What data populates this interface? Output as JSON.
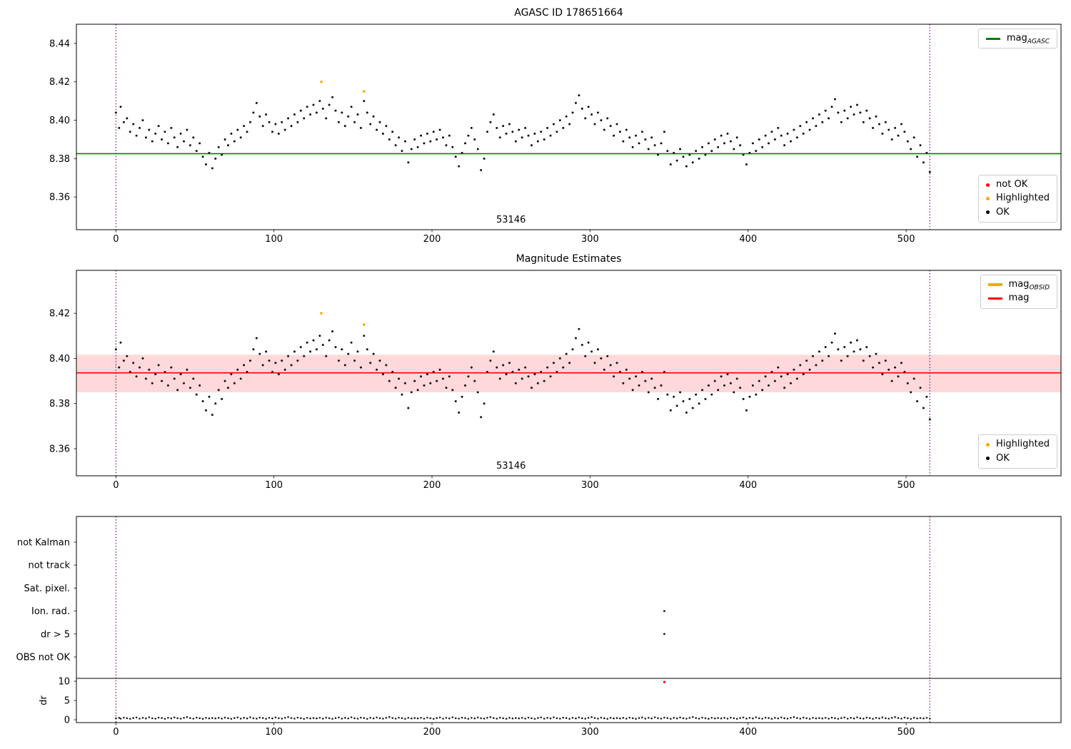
{
  "figure": {
    "background": "#ffffff"
  },
  "colors": {
    "scatter": "#111111",
    "highlight": "#ffa500",
    "not_ok": "#ff0000",
    "vline": "#800080",
    "green_line": "#008000",
    "red_line": "#ff0000",
    "band_fill": "rgba(255,0,0,0.15)",
    "spine": "#000000"
  },
  "chart_data": {
    "type": "scatter",
    "points_mag": [
      [
        0,
        8.404
      ],
      [
        2,
        8.396
      ],
      [
        3,
        8.407
      ],
      [
        5,
        8.399
      ],
      [
        7,
        8.401
      ],
      [
        9,
        8.394
      ],
      [
        11,
        8.398
      ],
      [
        13,
        8.392
      ],
      [
        15,
        8.396
      ],
      [
        17,
        8.4
      ],
      [
        19,
        8.391
      ],
      [
        21,
        8.395
      ],
      [
        23,
        8.389
      ],
      [
        25,
        8.393
      ],
      [
        27,
        8.397
      ],
      [
        29,
        8.39
      ],
      [
        31,
        8.394
      ],
      [
        33,
        8.388
      ],
      [
        35,
        8.396
      ],
      [
        37,
        8.391
      ],
      [
        39,
        8.386
      ],
      [
        41,
        8.393
      ],
      [
        43,
        8.389
      ],
      [
        45,
        8.395
      ],
      [
        47,
        8.387
      ],
      [
        49,
        8.391
      ],
      [
        51,
        8.384
      ],
      [
        53,
        8.388
      ],
      [
        55,
        8.381
      ],
      [
        57,
        8.377
      ],
      [
        59,
        8.383
      ],
      [
        61,
        8.375
      ],
      [
        63,
        8.38
      ],
      [
        65,
        8.386
      ],
      [
        67,
        8.382
      ],
      [
        69,
        8.39
      ],
      [
        71,
        8.387
      ],
      [
        73,
        8.393
      ],
      [
        75,
        8.389
      ],
      [
        77,
        8.395
      ],
      [
        79,
        8.391
      ],
      [
        81,
        8.397
      ],
      [
        83,
        8.394
      ],
      [
        85,
        8.399
      ],
      [
        87,
        8.404
      ],
      [
        89,
        8.409
      ],
      [
        91,
        8.402
      ],
      [
        93,
        8.397
      ],
      [
        95,
        8.403
      ],
      [
        97,
        8.399
      ],
      [
        99,
        8.394
      ],
      [
        101,
        8.398
      ],
      [
        103,
        8.393
      ],
      [
        105,
        8.399
      ],
      [
        107,
        8.395
      ],
      [
        109,
        8.401
      ],
      [
        111,
        8.397
      ],
      [
        113,
        8.403
      ],
      [
        115,
        8.399
      ],
      [
        117,
        8.405
      ],
      [
        119,
        8.401
      ],
      [
        121,
        8.407
      ],
      [
        123,
        8.403
      ],
      [
        125,
        8.408
      ],
      [
        127,
        8.404
      ],
      [
        129,
        8.41
      ],
      [
        131,
        8.406
      ],
      [
        133,
        8.401
      ],
      [
        135,
        8.408
      ],
      [
        137,
        8.412
      ],
      [
        139,
        8.405
      ],
      [
        141,
        8.399
      ],
      [
        143,
        8.404
      ],
      [
        145,
        8.397
      ],
      [
        147,
        8.402
      ],
      [
        149,
        8.407
      ],
      [
        151,
        8.399
      ],
      [
        153,
        8.403
      ],
      [
        155,
        8.396
      ],
      [
        157,
        8.41
      ],
      [
        159,
        8.404
      ],
      [
        161,
        8.398
      ],
      [
        163,
        8.402
      ],
      [
        165,
        8.395
      ],
      [
        167,
        8.399
      ],
      [
        169,
        8.393
      ],
      [
        171,
        8.397
      ],
      [
        173,
        8.39
      ],
      [
        175,
        8.394
      ],
      [
        177,
        8.387
      ],
      [
        179,
        8.391
      ],
      [
        181,
        8.384
      ],
      [
        183,
        8.389
      ],
      [
        185,
        8.378
      ],
      [
        187,
        8.385
      ],
      [
        189,
        8.39
      ],
      [
        191,
        8.386
      ],
      [
        193,
        8.392
      ],
      [
        195,
        8.388
      ],
      [
        197,
        8.393
      ],
      [
        199,
        8.389
      ],
      [
        201,
        8.394
      ],
      [
        203,
        8.39
      ],
      [
        205,
        8.395
      ],
      [
        207,
        8.391
      ],
      [
        209,
        8.387
      ],
      [
        211,
        8.392
      ],
      [
        213,
        8.386
      ],
      [
        215,
        8.381
      ],
      [
        217,
        8.376
      ],
      [
        219,
        8.383
      ],
      [
        221,
        8.388
      ],
      [
        223,
        8.392
      ],
      [
        225,
        8.396
      ],
      [
        227,
        8.39
      ],
      [
        229,
        8.385
      ],
      [
        231,
        8.374
      ],
      [
        233,
        8.38
      ],
      [
        235,
        8.394
      ],
      [
        237,
        8.399
      ],
      [
        239,
        8.403
      ],
      [
        241,
        8.396
      ],
      [
        243,
        8.391
      ],
      [
        245,
        8.397
      ],
      [
        247,
        8.393
      ],
      [
        249,
        8.398
      ],
      [
        251,
        8.394
      ],
      [
        253,
        8.389
      ],
      [
        255,
        8.395
      ],
      [
        257,
        8.391
      ],
      [
        259,
        8.396
      ],
      [
        261,
        8.392
      ],
      [
        263,
        8.387
      ],
      [
        265,
        8.393
      ],
      [
        267,
        8.389
      ],
      [
        269,
        8.394
      ],
      [
        271,
        8.39
      ],
      [
        273,
        8.396
      ],
      [
        275,
        8.392
      ],
      [
        277,
        8.398
      ],
      [
        279,
        8.394
      ],
      [
        281,
        8.4
      ],
      [
        283,
        8.396
      ],
      [
        285,
        8.402
      ],
      [
        287,
        8.398
      ],
      [
        289,
        8.404
      ],
      [
        291,
        8.409
      ],
      [
        293,
        8.413
      ],
      [
        295,
        8.406
      ],
      [
        297,
        8.401
      ],
      [
        299,
        8.407
      ],
      [
        301,
        8.403
      ],
      [
        303,
        8.398
      ],
      [
        305,
        8.404
      ],
      [
        307,
        8.4
      ],
      [
        309,
        8.395
      ],
      [
        311,
        8.401
      ],
      [
        313,
        8.397
      ],
      [
        315,
        8.392
      ],
      [
        317,
        8.398
      ],
      [
        319,
        8.394
      ],
      [
        321,
        8.389
      ],
      [
        323,
        8.395
      ],
      [
        325,
        8.391
      ],
      [
        327,
        8.386
      ],
      [
        329,
        8.392
      ],
      [
        331,
        8.388
      ],
      [
        333,
        8.394
      ],
      [
        335,
        8.39
      ],
      [
        337,
        8.385
      ],
      [
        339,
        8.391
      ],
      [
        341,
        8.387
      ],
      [
        343,
        8.382
      ],
      [
        345,
        8.388
      ],
      [
        347,
        8.394
      ],
      [
        349,
        8.384
      ],
      [
        351,
        8.377
      ],
      [
        353,
        8.383
      ],
      [
        355,
        8.379
      ],
      [
        357,
        8.385
      ],
      [
        359,
        8.381
      ],
      [
        361,
        8.376
      ],
      [
        363,
        8.382
      ],
      [
        365,
        8.378
      ],
      [
        367,
        8.384
      ],
      [
        369,
        8.38
      ],
      [
        371,
        8.386
      ],
      [
        373,
        8.382
      ],
      [
        375,
        8.388
      ],
      [
        377,
        8.384
      ],
      [
        379,
        8.39
      ],
      [
        381,
        8.386
      ],
      [
        383,
        8.392
      ],
      [
        385,
        8.388
      ],
      [
        387,
        8.393
      ],
      [
        389,
        8.389
      ],
      [
        391,
        8.385
      ],
      [
        393,
        8.391
      ],
      [
        395,
        8.387
      ],
      [
        397,
        8.382
      ],
      [
        399,
        8.377
      ],
      [
        401,
        8.383
      ],
      [
        403,
        8.388
      ],
      [
        405,
        8.384
      ],
      [
        407,
        8.39
      ],
      [
        409,
        8.386
      ],
      [
        411,
        8.392
      ],
      [
        413,
        8.388
      ],
      [
        415,
        8.394
      ],
      [
        417,
        8.39
      ],
      [
        419,
        8.396
      ],
      [
        421,
        8.392
      ],
      [
        423,
        8.387
      ],
      [
        425,
        8.393
      ],
      [
        427,
        8.389
      ],
      [
        429,
        8.395
      ],
      [
        431,
        8.391
      ],
      [
        433,
        8.397
      ],
      [
        435,
        8.393
      ],
      [
        437,
        8.399
      ],
      [
        439,
        8.395
      ],
      [
        441,
        8.401
      ],
      [
        443,
        8.397
      ],
      [
        445,
        8.403
      ],
      [
        447,
        8.399
      ],
      [
        449,
        8.405
      ],
      [
        451,
        8.401
      ],
      [
        453,
        8.407
      ],
      [
        455,
        8.411
      ],
      [
        457,
        8.404
      ],
      [
        459,
        8.399
      ],
      [
        461,
        8.405
      ],
      [
        463,
        8.401
      ],
      [
        465,
        8.407
      ],
      [
        467,
        8.403
      ],
      [
        469,
        8.408
      ],
      [
        471,
        8.404
      ],
      [
        473,
        8.399
      ],
      [
        475,
        8.405
      ],
      [
        477,
        8.401
      ],
      [
        479,
        8.396
      ],
      [
        481,
        8.402
      ],
      [
        483,
        8.398
      ],
      [
        485,
        8.393
      ],
      [
        487,
        8.399
      ],
      [
        489,
        8.395
      ],
      [
        491,
        8.39
      ],
      [
        493,
        8.396
      ],
      [
        495,
        8.392
      ],
      [
        497,
        8.398
      ],
      [
        499,
        8.394
      ],
      [
        501,
        8.389
      ],
      [
        503,
        8.385
      ],
      [
        505,
        8.391
      ],
      [
        507,
        8.381
      ],
      [
        509,
        8.387
      ],
      [
        511,
        8.378
      ],
      [
        513,
        8.383
      ],
      [
        515,
        8.373
      ]
    ],
    "highlighted": [
      [
        130,
        8.42
      ],
      [
        157,
        8.415
      ]
    ],
    "dr_pattern": [
      0.35,
      0.5,
      0.3,
      0.55,
      0.4,
      0.25,
      0.45,
      0.6,
      0.3,
      0.5,
      0.35,
      0.65,
      0.4,
      0.3,
      0.55,
      0.45,
      0.25,
      0.5,
      0.35,
      0.6,
      0.4,
      0.3,
      0.5,
      0.7,
      0.45,
      0.3,
      0.55,
      0.4,
      0.25,
      0.5,
      0.35,
      0.45
    ],
    "panels": [
      {
        "title": "AGASC ID 178651664",
        "xlim": [
          -25,
          598
        ],
        "ylim": [
          8.343,
          8.45
        ],
        "xticks": [
          0,
          100,
          200,
          300,
          400,
          500
        ],
        "yticks": [
          8.36,
          8.38,
          8.4,
          8.42,
          8.44
        ],
        "ref_line": {
          "value": 8.3826,
          "color": "#008000"
        },
        "vlines": [
          0,
          515
        ],
        "annotation": {
          "text": "53146",
          "x": 250
        },
        "legend_top": [
          {
            "swatch": "line",
            "color": "#008000",
            "main": "mag",
            "sub": "AGASC"
          }
        ],
        "legend_bottom": [
          {
            "swatch": "dot",
            "color": "#ff0000",
            "label": "not OK"
          },
          {
            "swatch": "dot",
            "color": "#ffa500",
            "label": "Highlighted"
          },
          {
            "swatch": "dot",
            "color": "#000000",
            "label": "OK"
          }
        ]
      },
      {
        "title": "Magnitude Estimates",
        "xlim": [
          -25,
          598
        ],
        "ylim": [
          8.348,
          8.439
        ],
        "xticks": [
          0,
          100,
          200,
          300,
          400,
          500
        ],
        "yticks": [
          8.36,
          8.38,
          8.4,
          8.42
        ],
        "band": {
          "lo": 8.385,
          "hi": 8.4016,
          "color": "rgba(255,0,0,0.15)"
        },
        "ref_line": {
          "value": 8.3936,
          "color": "#ff0000"
        },
        "vlines": [
          0,
          515
        ],
        "annotation": {
          "text": "53146",
          "x": 250
        },
        "legend_top": [
          {
            "swatch": "line-thick",
            "color": "#ffa500",
            "main": "mag",
            "sub": "OBSID"
          },
          {
            "swatch": "line",
            "color": "#ff0000",
            "main": "mag",
            "sub": ""
          }
        ],
        "legend_bottom": [
          {
            "swatch": "dot",
            "color": "#ffa500",
            "label": "Highlighted"
          },
          {
            "swatch": "dot",
            "color": "#000000",
            "label": "OK"
          }
        ]
      },
      {
        "categories": [
          "not Kalman",
          "not track",
          "Sat. pixel.",
          "Ion. rad.",
          "dr > 5",
          "OBS not OK"
        ],
        "dr_ticks": [
          10,
          5,
          0
        ],
        "ylabel": "dr",
        "xlim": [
          -25,
          598
        ],
        "xticks": [
          0,
          100,
          200,
          300,
          400,
          500
        ],
        "vlines": [
          0,
          515
        ],
        "flag_points": [
          {
            "row": "Ion. rad.",
            "x": 347
          },
          {
            "row": "dr > 5",
            "x": 347
          }
        ],
        "not_ok_points": [
          {
            "x": 347,
            "dr": 9.8
          }
        ]
      }
    ]
  }
}
